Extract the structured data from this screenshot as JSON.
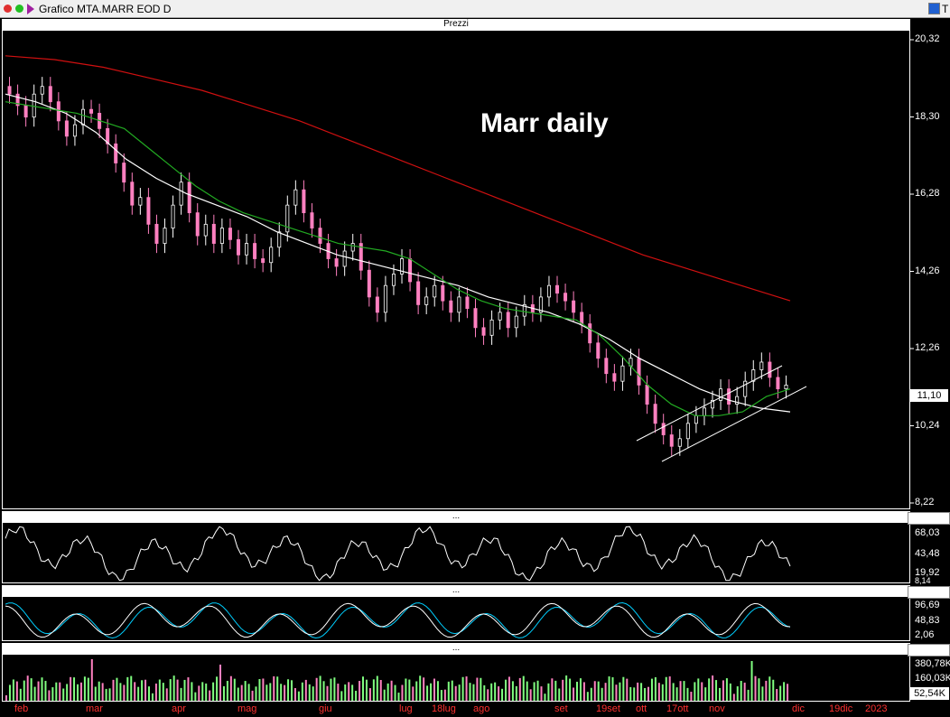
{
  "window": {
    "title": "Grafico MTA.MARR EOD D",
    "right_label": "T"
  },
  "panels": {
    "price_header": "Prezzi",
    "osc_header_1": "...",
    "osc_header_2": "...",
    "osc_header_3": "..."
  },
  "annotation": "Marr daily",
  "price_axis": [
    "20,32",
    "18,30",
    "16,28",
    "14,26",
    "12,26",
    "10,24",
    "8,22"
  ],
  "last_price": "11,10",
  "rsi_axis": {
    "top": "68,03",
    "mid": "43,48",
    "low": "19,92",
    "bottom": "8,14"
  },
  "stoch_axis": {
    "top": "96,69",
    "mid": "48,83",
    "low": "2,06"
  },
  "volume_axis": {
    "top": "380,78K",
    "mid": "160,03K",
    "low": "52,54K"
  },
  "x_labels": [
    {
      "text": "feb",
      "color": "#ff3030"
    },
    {
      "text": "mar",
      "color": "#ff3030"
    },
    {
      "text": "apr",
      "color": "#ff3030"
    },
    {
      "text": "mag",
      "color": "#ff3030"
    },
    {
      "text": "giu",
      "color": "#ff3030"
    },
    {
      "text": "lug",
      "color": "#ff3030"
    },
    {
      "text": "18lug",
      "color": "#ff3030"
    },
    {
      "text": "ago",
      "color": "#ff3030"
    },
    {
      "text": "set",
      "color": "#ff3030"
    },
    {
      "text": "19set",
      "color": "#ff3030"
    },
    {
      "text": "ott",
      "color": "#ff3030"
    },
    {
      "text": "17ott",
      "color": "#ff3030"
    },
    {
      "text": "nov",
      "color": "#ff3030"
    },
    {
      "text": "dic",
      "color": "#ff3030"
    },
    {
      "text": "19dic",
      "color": "#ff3030"
    },
    {
      "text": "2023",
      "color": "#ff3030"
    }
  ],
  "colors": {
    "background": "#000000",
    "ma_long": "#d01010",
    "ma_mid": "#ffffff",
    "ma_short": "#22aa22",
    "candle_up": "#ffffff",
    "candle_down": "#ff80c0",
    "stoch_k": "#00cfff",
    "volume_up": "#80ff80",
    "volume_down": "#ff80c0"
  },
  "chart_data": {
    "type": "candlestick",
    "y_range": [
      8.22,
      20.32
    ],
    "series": [
      {
        "name": "",
        "kind": "close",
        "values": [
          18.9,
          18.6,
          18.3,
          18.9,
          19.1,
          18.7,
          18.2,
          17.8,
          18.1,
          18.5,
          18.4,
          18.0,
          17.6,
          17.1,
          16.6,
          16.0,
          16.2,
          15.5,
          15.0,
          15.4,
          16.0,
          16.6,
          15.8,
          15.2,
          15.5,
          15.0,
          15.4,
          15.1,
          14.7,
          15.0,
          14.6,
          14.5,
          14.9,
          15.3,
          16.0,
          16.4,
          15.8,
          15.4,
          15.0,
          14.6,
          14.4,
          14.8,
          15.0,
          14.3,
          13.6,
          13.2,
          13.9,
          14.2,
          14.6,
          14.0,
          13.4,
          13.6,
          13.9,
          13.5,
          13.2,
          13.6,
          13.3,
          12.8,
          12.6,
          13.0,
          13.2,
          12.8,
          13.1,
          13.4,
          13.2,
          13.6,
          13.9,
          13.7,
          13.5,
          13.2,
          12.9,
          12.4,
          12.0,
          11.6,
          11.4,
          11.8,
          12.0,
          11.3,
          10.8,
          10.3,
          10.0,
          9.7,
          9.9,
          10.3,
          10.5,
          10.7,
          10.9,
          11.2,
          10.8,
          11.0,
          11.4,
          11.7,
          11.9,
          11.5,
          11.2,
          11.3
        ]
      },
      {
        "name": "",
        "kind": "moving_average",
        "values": [
          18.7,
          18.6,
          18.5,
          18.4,
          18.2,
          18.0,
          17.5,
          17.0,
          16.5,
          16.1,
          15.8,
          15.6,
          15.4,
          15.2,
          15.0,
          14.9,
          14.8,
          14.6,
          14.2,
          13.8,
          13.5,
          13.3,
          13.2,
          13.1,
          13.0,
          12.6,
          12.0,
          11.3,
          10.8,
          10.5,
          10.5,
          10.6,
          11.0,
          11.2
        ]
      },
      {
        "name": "",
        "kind": "moving_average",
        "values": [
          18.9,
          18.7,
          18.4,
          17.9,
          17.2,
          16.7,
          16.3,
          16.0,
          15.7,
          15.3,
          15.0,
          14.7,
          14.5,
          14.3,
          14.1,
          13.9,
          13.6,
          13.4,
          13.2,
          12.9,
          12.5,
          12.0,
          11.6,
          11.2,
          10.9,
          10.7,
          10.6
        ]
      },
      {
        "name": "",
        "kind": "moving_average",
        "values": [
          19.9,
          19.8,
          19.6,
          19.3,
          19.0,
          18.6,
          18.2,
          17.7,
          17.2,
          16.7,
          16.2,
          15.7,
          15.2,
          14.7,
          14.3,
          13.9,
          13.5
        ]
      }
    ]
  }
}
